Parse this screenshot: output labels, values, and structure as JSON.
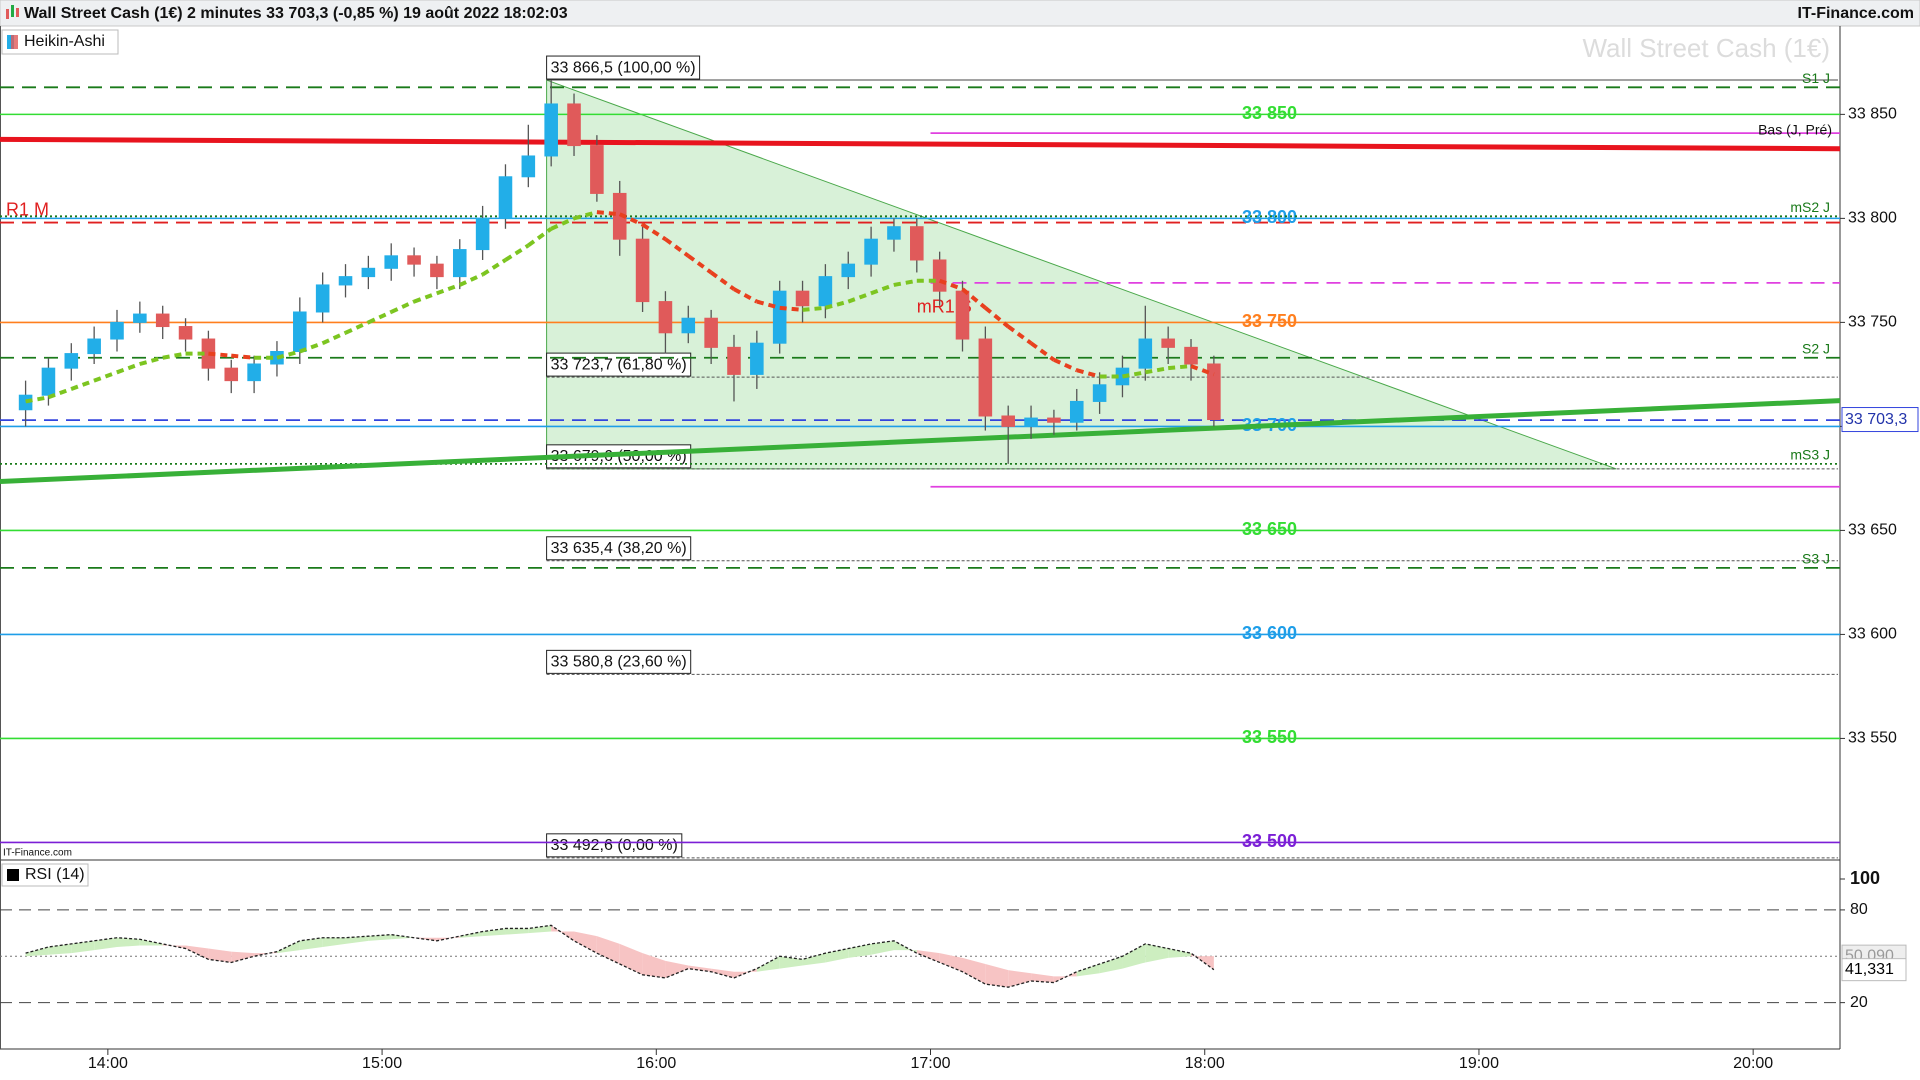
{
  "chart_data": {
    "type": "candlestick",
    "title": "Wall Street Cash (1€) 2 minutes 33 703,3 (-0,85 %) 19 août 2022 18:02:03",
    "brand": "IT-Finance.com",
    "watermark": "Wall Street Cash (1€)",
    "candle_style": "Heikin-Ashi",
    "xlim": [
      816.4,
      1219
    ],
    "xticks": [
      {
        "value": 840,
        "label": "14:00"
      },
      {
        "value": 900,
        "label": "15:00"
      },
      {
        "value": 960,
        "label": "16:00"
      },
      {
        "value": 1020,
        "label": "17:00"
      },
      {
        "value": 1080,
        "label": "18:00"
      },
      {
        "value": 1140,
        "label": "19:00"
      },
      {
        "value": 1200,
        "label": "20:00"
      }
    ],
    "ylim": [
      33493,
      33892
    ],
    "yticks": [
      {
        "value": 33550,
        "label": "33 550"
      },
      {
        "value": 33600,
        "label": "33 600"
      },
      {
        "value": 33650,
        "label": "33 650"
      },
      {
        "value": 33700,
        "label": "33 700"
      },
      {
        "value": 33750,
        "label": "33 750"
      },
      {
        "value": 33800,
        "label": "33 800"
      },
      {
        "value": 33850,
        "label": "33 850"
      }
    ],
    "up_color": "#22aee8",
    "down_color": "#e05a5a",
    "x": [
      822,
      827,
      832,
      837,
      842,
      847,
      852,
      857,
      862,
      867,
      872,
      877,
      882,
      887,
      892,
      897,
      902,
      907,
      912,
      917,
      922,
      927,
      932,
      937,
      942,
      947,
      952,
      957,
      962,
      967,
      972,
      977,
      982,
      987,
      992,
      997,
      1002,
      1007,
      1012,
      1017,
      1022,
      1027,
      1032,
      1037,
      1042,
      1047,
      1052,
      1057,
      1062,
      1067,
      1072,
      1077,
      1082
    ],
    "open": [
      33708,
      33715,
      33728,
      33735,
      33742,
      33750,
      33754,
      33748,
      33742,
      33728,
      33722,
      33730,
      33736,
      33755,
      33768,
      33772,
      33776,
      33782,
      33778,
      33772,
      33785,
      33800,
      33820,
      33830,
      33855,
      33835,
      33812,
      33790,
      33760,
      33745,
      33752,
      33738,
      33725,
      33740,
      33765,
      33758,
      33772,
      33778,
      33790,
      33796,
      33780,
      33765,
      33742,
      33705,
      33700,
      33704,
      33702,
      33712,
      33720,
      33728,
      33742,
      33738,
      33730
    ],
    "high": [
      33722,
      33733,
      33740,
      33748,
      33756,
      33760,
      33758,
      33752,
      33746,
      33732,
      33734,
      33741,
      33762,
      33774,
      33778,
      33782,
      33788,
      33786,
      33782,
      33790,
      33806,
      33826,
      33845,
      33866.5,
      33860,
      33840,
      33818,
      33796,
      33765,
      33758,
      33756,
      33744,
      33746,
      33770,
      33770,
      33778,
      33784,
      33796,
      33800,
      33800,
      33784,
      33770,
      33748,
      33710,
      33710,
      33708,
      33718,
      33726,
      33734,
      33758,
      33748,
      33742,
      33734
    ],
    "low": [
      33700,
      33710,
      33722,
      33730,
      33736,
      33745,
      33742,
      33736,
      33722,
      33716,
      33716,
      33724,
      33730,
      33750,
      33762,
      33766,
      33770,
      33772,
      33766,
      33766,
      33780,
      33795,
      33815,
      33825,
      33830,
      33808,
      33782,
      33755,
      33735,
      33740,
      33730,
      33712,
      33718,
      33735,
      33750,
      33752,
      33766,
      33772,
      33784,
      33774,
      33758,
      33736,
      33698,
      33682,
      33694,
      33696,
      33698,
      33706,
      33714,
      33722,
      33730,
      33722,
      33700
    ],
    "close": [
      33715,
      33728,
      33735,
      33742,
      33750,
      33754,
      33748,
      33742,
      33728,
      33722,
      33730,
      33736,
      33755,
      33768,
      33772,
      33776,
      33782,
      33778,
      33772,
      33785,
      33800,
      33820,
      33830,
      33855,
      33835,
      33812,
      33790,
      33760,
      33745,
      33752,
      33738,
      33725,
      33740,
      33765,
      33758,
      33772,
      33778,
      33790,
      33796,
      33780,
      33765,
      33742,
      33705,
      33700,
      33704,
      33702,
      33712,
      33720,
      33728,
      33742,
      33738,
      33730,
      33703.3
    ],
    "moving_average": {
      "rise_color": "#7cc520",
      "fall_color": "#e8401e",
      "values": [
        33712,
        33714,
        33718,
        33722,
        33726,
        33730,
        33733,
        33735,
        33735,
        33734,
        33733,
        33733,
        33736,
        33740,
        33745,
        33750,
        33755,
        33760,
        33764,
        33768,
        33773,
        33780,
        33787,
        33795,
        33800,
        33803,
        33802,
        33797,
        33790,
        33782,
        33774,
        33766,
        33760,
        33757,
        33756,
        33757,
        33760,
        33764,
        33768,
        33770,
        33770,
        33766,
        33757,
        33748,
        33740,
        33732,
        33727,
        33724,
        33724,
        33726,
        33728,
        33729,
        33725
      ]
    },
    "last_price": {
      "value": 33703.3,
      "label": "33 703,3"
    },
    "triangle": {
      "x": [
        936,
        1170
      ],
      "y": [
        33866.5,
        33679.6
      ],
      "color": "#8fd88f"
    },
    "levels": [
      {
        "name": "S1 J",
        "value": 33863,
        "color": "#1a7a1a",
        "style": "dashed",
        "side": "right"
      },
      {
        "label": "33 850",
        "value": 33850,
        "color": "#33dd33",
        "style": "solid"
      },
      {
        "value": 33841,
        "color": "#e040e0",
        "style": "solid",
        "x_start": 1020
      },
      {
        "name": "R1 M",
        "value": 33798,
        "color": "#e02020",
        "style": "dashed",
        "side": "left"
      },
      {
        "label": "33 800",
        "value": 33800,
        "color": "#1e9ee8",
        "style": "solid"
      },
      {
        "name": "mS2 J",
        "value": 33801,
        "color": "#1a7a1a",
        "style": "dotted",
        "side": "right"
      },
      {
        "value": 33769,
        "color": "#e040e0",
        "style": "dashed",
        "x_start": 1020
      },
      {
        "label": "33 750",
        "value": 33750,
        "color": "#ff7f1e",
        "style": "solid"
      },
      {
        "name": "S2 J",
        "value": 33733,
        "color": "#1a7a1a",
        "style": "dashed",
        "side": "right"
      },
      {
        "value": 33703,
        "color": "#3344dd",
        "style": "dashed"
      },
      {
        "label": "33 700",
        "value": 33700,
        "color": "#1e9ee8",
        "style": "solid"
      },
      {
        "name": "mS3 J",
        "value": 33682,
        "color": "#1a7a1a",
        "style": "dotted",
        "side": "right"
      },
      {
        "value": 33671,
        "color": "#e040e0",
        "style": "solid",
        "x_start": 1020
      },
      {
        "label": "33 650",
        "value": 33650,
        "color": "#33dd33",
        "style": "solid"
      },
      {
        "name": "S3 J",
        "value": 33632,
        "color": "#1a7a1a",
        "style": "dashed",
        "side": "right"
      },
      {
        "label": "33 600",
        "value": 33600,
        "color": "#1e9ee8",
        "style": "solid"
      },
      {
        "label": "33 550",
        "value": 33550,
        "color": "#33dd33",
        "style": "solid"
      },
      {
        "label": "33 500",
        "value": 33500,
        "color": "#7b1fd6",
        "style": "solid"
      }
    ],
    "annotations": [
      {
        "text": "mR1 S",
        "x": 1017,
        "y": 33757,
        "color": "#e02020"
      }
    ],
    "trend_lines": [
      {
        "name": "Bas (J, Pré)",
        "x": [
          816.4,
          1219
        ],
        "y": [
          33838,
          33833.5
        ],
        "color": "#e8141e"
      },
      {
        "x": [
          816.4,
          1219
        ],
        "y": [
          33673.5,
          33712.4
        ],
        "color": "#38b038"
      }
    ],
    "fibonacci": {
      "x_start": 936,
      "levels": [
        {
          "value": 33866.5,
          "label": "33 866,5 (100,00 %)"
        },
        {
          "value": 33723.7,
          "label": "33 723,7 (61,80 %)"
        },
        {
          "value": 33679.6,
          "label": "33 679,6 (50,00 %)"
        },
        {
          "value": 33635.4,
          "label": "33 635,4 (38,20 %)"
        },
        {
          "value": 33580.8,
          "label": "33 580,8 (23,60 %)"
        },
        {
          "value": 33492.6,
          "label": "33 492,6 (0,00 %)"
        }
      ]
    },
    "rsi": {
      "name": "RSI (14)",
      "ylim": [
        -10,
        111
      ],
      "yticks": [
        20,
        80,
        100
      ],
      "bands": [
        20,
        80
      ],
      "mid": 50,
      "values": [
        52,
        56,
        58,
        60,
        62,
        61,
        58,
        55,
        48,
        46,
        50,
        53,
        60,
        62,
        62,
        63,
        64,
        62,
        60,
        63,
        66,
        68,
        68,
        70,
        60,
        52,
        45,
        38,
        36,
        42,
        40,
        36,
        42,
        50,
        48,
        52,
        55,
        58,
        60,
        52,
        46,
        40,
        32,
        30,
        34,
        33,
        40,
        45,
        50,
        58,
        55,
        52,
        41.331
      ],
      "signal": [
        50,
        51,
        52,
        54,
        56,
        57,
        57,
        57,
        55,
        53,
        52,
        52,
        54,
        56,
        58,
        60,
        61,
        62,
        62,
        62,
        63,
        64,
        65,
        66,
        66,
        63,
        58,
        52,
        47,
        44,
        42,
        40,
        40,
        42,
        44,
        46,
        49,
        51,
        54,
        54,
        52,
        49,
        45,
        41,
        39,
        37,
        37,
        39,
        42,
        46,
        49,
        50,
        50.09
      ],
      "value_box": {
        "value": 41.331,
        "label": "41,331"
      },
      "signal_box": {
        "value": 50.09,
        "label": "50,090"
      },
      "up_fill": "#cdeec0",
      "down_fill": "#f7c4c4"
    }
  }
}
